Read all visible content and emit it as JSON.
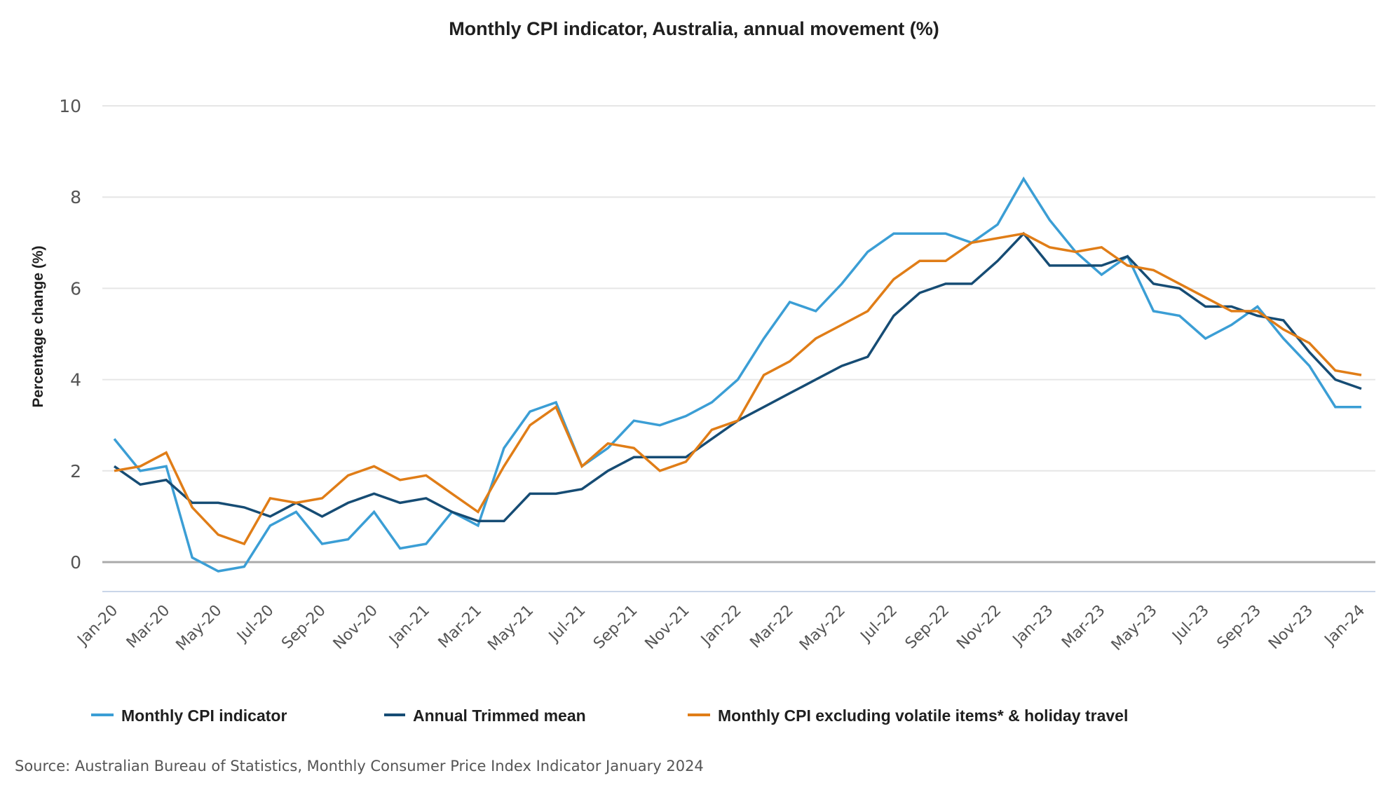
{
  "chart_data": {
    "type": "line",
    "title": "Monthly CPI indicator, Australia, annual movement (%)",
    "xlabel": "",
    "ylabel": "Percentage change (%)",
    "ylim": [
      -0.6,
      10
    ],
    "yticks": [
      0,
      2,
      4,
      6,
      8,
      10
    ],
    "grid": true,
    "legend_position": "bottom",
    "x": [
      "Jan-20",
      "Feb-20",
      "Mar-20",
      "Apr-20",
      "May-20",
      "Jun-20",
      "Jul-20",
      "Aug-20",
      "Sep-20",
      "Oct-20",
      "Nov-20",
      "Dec-20",
      "Jan-21",
      "Feb-21",
      "Mar-21",
      "Apr-21",
      "May-21",
      "Jun-21",
      "Jul-21",
      "Aug-21",
      "Sep-21",
      "Oct-21",
      "Nov-21",
      "Dec-21",
      "Jan-22",
      "Feb-22",
      "Mar-22",
      "Apr-22",
      "May-22",
      "Jun-22",
      "Jul-22",
      "Aug-22",
      "Sep-22",
      "Oct-22",
      "Nov-22",
      "Dec-22",
      "Jan-23",
      "Feb-23",
      "Mar-23",
      "Apr-23",
      "May-23",
      "Jun-23",
      "Jul-23",
      "Aug-23",
      "Sep-23",
      "Oct-23",
      "Nov-23",
      "Dec-23",
      "Jan-24"
    ],
    "xtick_labels": [
      "Jan-20",
      "Mar-20",
      "May-20",
      "Jul-20",
      "Sep-20",
      "Nov-20",
      "Jan-21",
      "Mar-21",
      "May-21",
      "Jul-21",
      "Sep-21",
      "Nov-21",
      "Jan-22",
      "Mar-22",
      "May-22",
      "Jul-22",
      "Sep-22",
      "Nov-22",
      "Jan-23",
      "Mar-23",
      "May-23",
      "Jul-23",
      "Sep-23",
      "Nov-23",
      "Jan-24"
    ],
    "series": [
      {
        "name": "Monthly CPI indicator",
        "color": "#3b9ed5",
        "values": [
          2.7,
          2.0,
          2.1,
          0.1,
          -0.2,
          -0.1,
          0.8,
          1.1,
          0.4,
          0.5,
          1.1,
          0.3,
          0.4,
          1.1,
          0.8,
          2.5,
          3.3,
          3.5,
          2.1,
          2.5,
          3.1,
          3.0,
          3.2,
          3.5,
          4.0,
          4.9,
          5.7,
          5.5,
          6.1,
          6.8,
          7.2,
          7.2,
          7.2,
          7.0,
          7.4,
          8.4,
          7.5,
          6.8,
          6.3,
          6.7,
          5.5,
          5.4,
          4.9,
          5.2,
          5.6,
          4.9,
          4.3,
          3.4,
          3.4
        ]
      },
      {
        "name": "Annual Trimmed mean",
        "color": "#164c74",
        "values": [
          2.1,
          1.7,
          1.8,
          1.3,
          1.3,
          1.2,
          1.0,
          1.3,
          1.0,
          1.3,
          1.5,
          1.3,
          1.4,
          1.1,
          0.9,
          0.9,
          1.5,
          1.5,
          1.6,
          2.0,
          2.3,
          2.3,
          2.3,
          2.7,
          3.1,
          3.4,
          3.7,
          4.0,
          4.3,
          4.5,
          5.4,
          5.9,
          6.1,
          6.1,
          6.6,
          7.2,
          6.5,
          6.5,
          6.5,
          6.7,
          6.1,
          6.0,
          5.6,
          5.6,
          5.4,
          5.3,
          4.6,
          4.0,
          3.8
        ]
      },
      {
        "name": "Monthly CPI excluding volatile items* & holiday travel",
        "color": "#e07d17",
        "values": [
          2.0,
          2.1,
          2.4,
          1.2,
          0.6,
          0.4,
          1.4,
          1.3,
          1.4,
          1.9,
          2.1,
          1.8,
          1.9,
          1.5,
          1.1,
          2.1,
          3.0,
          3.4,
          2.1,
          2.6,
          2.5,
          2.0,
          2.2,
          2.9,
          3.1,
          4.1,
          4.4,
          4.9,
          5.2,
          5.5,
          6.2,
          6.6,
          6.6,
          7.0,
          7.1,
          7.2,
          6.9,
          6.8,
          6.9,
          6.5,
          6.4,
          6.1,
          5.8,
          5.5,
          5.5,
          5.1,
          4.8,
          4.2,
          4.1
        ]
      }
    ],
    "source": "Source: Australian Bureau of Statistics, Monthly Consumer Price Index Indicator January 2024"
  },
  "colors": {
    "grid": "#e6e6e6",
    "zero_line": "#aaaaaa",
    "x_axis": "#c9d6e8"
  }
}
